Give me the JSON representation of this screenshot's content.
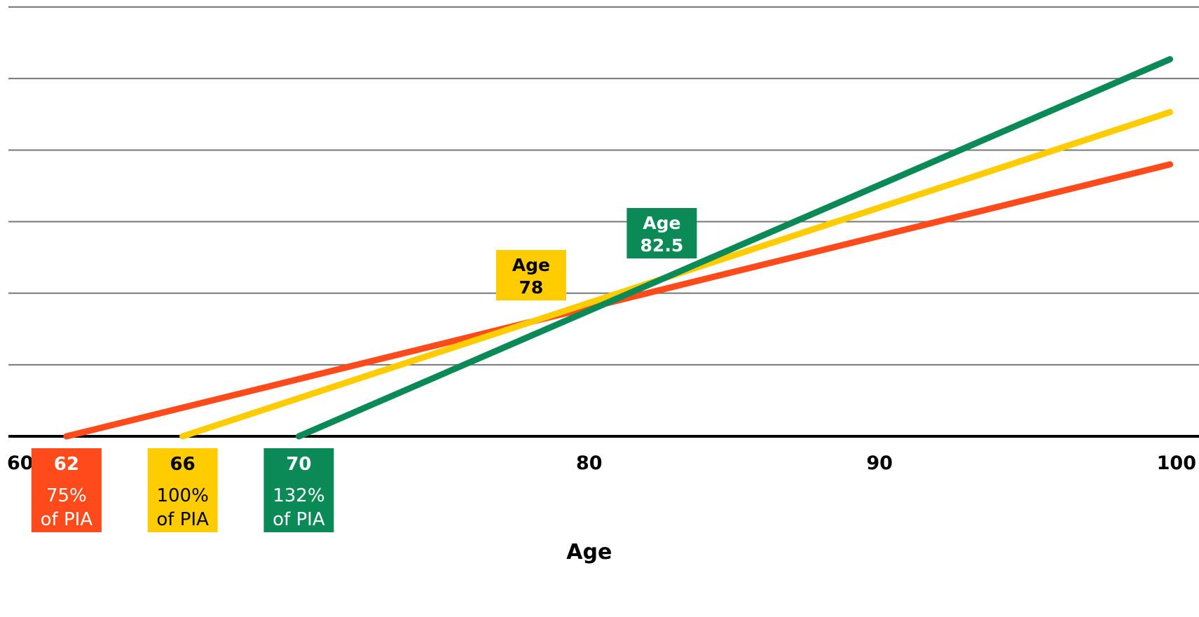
{
  "chart_data": {
    "type": "line",
    "title": "",
    "xlabel": "Age",
    "ylabel": "",
    "xlim": [
      60,
      101
    ],
    "ylim": [
      0,
      6
    ],
    "x_ticks": [
      "60",
      "80",
      "90",
      "100"
    ],
    "grid": true,
    "colors": {
      "orange": "#FF4A1C",
      "yellow": "#FFCC00",
      "green": "#0B8A57",
      "axis": "#000000",
      "grid": "#777777"
    },
    "series": [
      {
        "claim_age_label": "62",
        "pct_label": "75%",
        "pia_label": "of PIA",
        "color": "#FF4A1C",
        "text_color": "#FFFFFF",
        "sub_color": "#FFFFFF",
        "x": [
          62,
          100
        ],
        "y": [
          0,
          3.8
        ]
      },
      {
        "claim_age_label": "66",
        "pct_label": "100%",
        "pia_label": "of PIA",
        "color": "#FFCC00",
        "text_color": "#000000",
        "sub_color": "#000000",
        "x": [
          66,
          100
        ],
        "y": [
          0,
          4.53
        ]
      },
      {
        "claim_age_label": "70",
        "pct_label": "132%",
        "pia_label": "of PIA",
        "color": "#0B8A57",
        "text_color": "#FFFFFF",
        "sub_color": "#FFFFFF",
        "x": [
          70,
          100
        ],
        "y": [
          0,
          5.27
        ]
      }
    ],
    "annotations": [
      {
        "line1": "Age",
        "line2": "78",
        "x": 78,
        "color": "#FFCC00",
        "text_color": "#000000"
      },
      {
        "line1": "Age",
        "line2": "82.5",
        "x": 82.5,
        "color": "#0B8A57",
        "text_color": "#FFFFFF"
      }
    ]
  }
}
